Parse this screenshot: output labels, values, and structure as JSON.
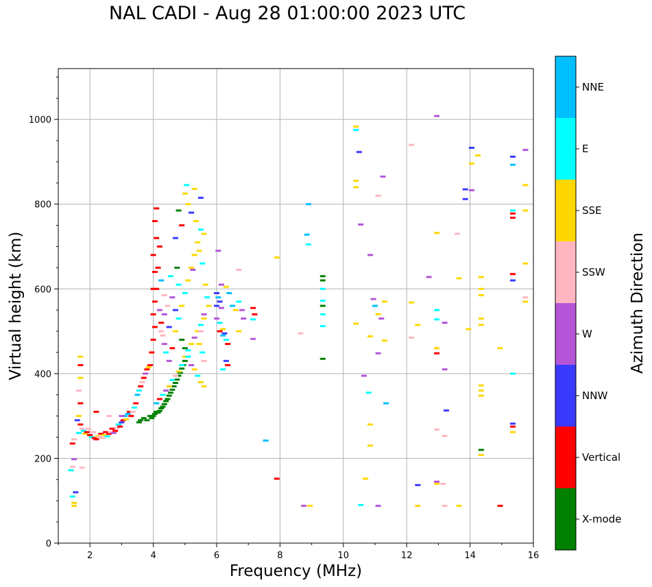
{
  "chart_data": {
    "type": "scatter",
    "title": "NAL CADI - Aug 28 01:00:00 2023 UTC",
    "xlabel": "Frequency (MHz)",
    "ylabel": "Virtual height (km)",
    "xlim": [
      1,
      16
    ],
    "ylim": [
      0,
      1120
    ],
    "xticks": [
      2,
      4,
      6,
      8,
      10,
      12,
      14,
      16
    ],
    "yticks": [
      0,
      200,
      400,
      600,
      800,
      1000
    ],
    "grid": true,
    "colorbar": {
      "title": "Azimuth Direction",
      "categories": [
        {
          "label": "X-mode",
          "color": "#008000"
        },
        {
          "label": "Vertical",
          "color": "#ff0000"
        },
        {
          "label": "NNW",
          "color": "#3a3aff"
        },
        {
          "label": "W",
          "color": "#b455d8"
        },
        {
          "label": "SSW",
          "color": "#ffb6c1"
        },
        {
          "label": "SSE",
          "color": "#ffd700"
        },
        {
          "label": "E",
          "color": "#00ffff"
        },
        {
          "label": "NNE",
          "color": "#00bfff"
        }
      ]
    },
    "points": [
      [
        1.5,
        88,
        5
      ],
      [
        1.5,
        95,
        5
      ],
      [
        1.45,
        110,
        6
      ],
      [
        1.55,
        120,
        2
      ],
      [
        1.45,
        180,
        4
      ],
      [
        1.4,
        172,
        6
      ],
      [
        1.5,
        198,
        3
      ],
      [
        1.45,
        235,
        1
      ],
      [
        1.5,
        245,
        4
      ],
      [
        1.75,
        178,
        4
      ],
      [
        1.6,
        290,
        2
      ],
      [
        1.65,
        300,
        5
      ],
      [
        1.7,
        330,
        1
      ],
      [
        1.65,
        360,
        4
      ],
      [
        1.7,
        390,
        5
      ],
      [
        1.7,
        420,
        1
      ],
      [
        1.7,
        440,
        5
      ],
      [
        1.65,
        260,
        6
      ],
      [
        1.7,
        280,
        1
      ],
      [
        1.75,
        270,
        4
      ],
      [
        1.8,
        265,
        6
      ],
      [
        1.85,
        258,
        5
      ],
      [
        1.9,
        262,
        1
      ],
      [
        1.95,
        270,
        4
      ],
      [
        2.0,
        255,
        1
      ],
      [
        2.05,
        250,
        6
      ],
      [
        2.1,
        262,
        4
      ],
      [
        2.15,
        248,
        1
      ],
      [
        2.2,
        245,
        1
      ],
      [
        2.25,
        252,
        5
      ],
      [
        2.3,
        250,
        4
      ],
      [
        2.35,
        258,
        1
      ],
      [
        2.4,
        248,
        4
      ],
      [
        2.45,
        255,
        5
      ],
      [
        2.5,
        262,
        1
      ],
      [
        2.55,
        252,
        6
      ],
      [
        2.6,
        258,
        1
      ],
      [
        2.65,
        262,
        4
      ],
      [
        2.7,
        270,
        1
      ],
      [
        2.75,
        260,
        3
      ],
      [
        2.8,
        265,
        1
      ],
      [
        2.85,
        272,
        4
      ],
      [
        2.9,
        280,
        6
      ],
      [
        2.95,
        275,
        1
      ],
      [
        3.0,
        285,
        2
      ],
      [
        3.05,
        290,
        1
      ],
      [
        3.1,
        300,
        7
      ],
      [
        3.15,
        292,
        5
      ],
      [
        3.2,
        305,
        7
      ],
      [
        3.25,
        310,
        1
      ],
      [
        2.2,
        310,
        1
      ],
      [
        2.6,
        300,
        4
      ],
      [
        3.0,
        300,
        3
      ],
      [
        3.3,
        300,
        1
      ],
      [
        3.35,
        310,
        4
      ],
      [
        3.4,
        320,
        6
      ],
      [
        3.45,
        330,
        1
      ],
      [
        3.5,
        350,
        7
      ],
      [
        3.55,
        360,
        6
      ],
      [
        3.6,
        370,
        1
      ],
      [
        3.65,
        380,
        4
      ],
      [
        3.7,
        390,
        1
      ],
      [
        3.75,
        400,
        3
      ],
      [
        3.8,
        410,
        1
      ],
      [
        3.85,
        415,
        5
      ],
      [
        3.55,
        285,
        0
      ],
      [
        3.6,
        290,
        0
      ],
      [
        3.7,
        295,
        0
      ],
      [
        3.8,
        290,
        0
      ],
      [
        3.9,
        300,
        0
      ],
      [
        3.95,
        295,
        0
      ],
      [
        4.0,
        300,
        0
      ],
      [
        4.05,
        305,
        0
      ],
      [
        4.1,
        310,
        0
      ],
      [
        4.15,
        308,
        0
      ],
      [
        4.2,
        312,
        0
      ],
      [
        4.25,
        318,
        0
      ],
      [
        4.3,
        322,
        0
      ],
      [
        4.35,
        328,
        0
      ],
      [
        4.4,
        335,
        0
      ],
      [
        4.45,
        340,
        0
      ],
      [
        4.5,
        348,
        0
      ],
      [
        4.55,
        355,
        0
      ],
      [
        4.6,
        362,
        0
      ],
      [
        4.65,
        370,
        0
      ],
      [
        4.7,
        378,
        0
      ],
      [
        4.75,
        386,
        0
      ],
      [
        4.8,
        395,
        0
      ],
      [
        4.85,
        402,
        0
      ],
      [
        4.9,
        412,
        0
      ],
      [
        4.95,
        420,
        0
      ],
      [
        5.0,
        430,
        0
      ],
      [
        4.1,
        330,
        7
      ],
      [
        4.2,
        340,
        1
      ],
      [
        4.3,
        350,
        6
      ],
      [
        4.4,
        360,
        3
      ],
      [
        4.5,
        370,
        5
      ],
      [
        4.6,
        385,
        6
      ],
      [
        4.7,
        395,
        4
      ],
      [
        4.8,
        405,
        5
      ],
      [
        4.9,
        420,
        6
      ],
      [
        5.0,
        440,
        5
      ],
      [
        5.1,
        455,
        6
      ],
      [
        5.2,
        470,
        5
      ],
      [
        5.3,
        485,
        3
      ],
      [
        5.4,
        500,
        5
      ],
      [
        5.5,
        515,
        6
      ],
      [
        5.6,
        530,
        5
      ],
      [
        3.9,
        420,
        1
      ],
      [
        3.95,
        450,
        1
      ],
      [
        4.0,
        480,
        1
      ],
      [
        4.05,
        510,
        1
      ],
      [
        4.0,
        540,
        1
      ],
      [
        4.05,
        570,
        1
      ],
      [
        4.0,
        600,
        1
      ],
      [
        4.05,
        640,
        1
      ],
      [
        4.0,
        680,
        1
      ],
      [
        4.1,
        720,
        1
      ],
      [
        4.05,
        760,
        1
      ],
      [
        4.1,
        790,
        1
      ],
      [
        4.2,
        700,
        1
      ],
      [
        4.15,
        650,
        1
      ],
      [
        4.1,
        600,
        1
      ],
      [
        4.2,
        550,
        3
      ],
      [
        4.25,
        520,
        1
      ],
      [
        4.3,
        490,
        4
      ],
      [
        4.35,
        470,
        3
      ],
      [
        4.4,
        450,
        6
      ],
      [
        4.5,
        430,
        3
      ],
      [
        4.6,
        460,
        1
      ],
      [
        4.7,
        500,
        5
      ],
      [
        4.8,
        530,
        6
      ],
      [
        4.9,
        560,
        5
      ],
      [
        5.0,
        590,
        6
      ],
      [
        5.1,
        620,
        5
      ],
      [
        5.2,
        650,
        5
      ],
      [
        5.3,
        680,
        5
      ],
      [
        5.4,
        710,
        5
      ],
      [
        5.5,
        740,
        6
      ],
      [
        5.35,
        760,
        5
      ],
      [
        5.2,
        780,
        2
      ],
      [
        5.1,
        800,
        5
      ],
      [
        5.0,
        825,
        5
      ],
      [
        5.05,
        845,
        6
      ],
      [
        5.3,
        836,
        5
      ],
      [
        5.5,
        815,
        2
      ],
      [
        4.8,
        785,
        0
      ],
      [
        4.9,
        750,
        1
      ],
      [
        4.7,
        720,
        2
      ],
      [
        4.75,
        650,
        0
      ],
      [
        4.8,
        610,
        6
      ],
      [
        4.6,
        580,
        3
      ],
      [
        4.7,
        550,
        2
      ],
      [
        4.5,
        510,
        2
      ],
      [
        4.9,
        480,
        0
      ],
      [
        5.0,
        460,
        0
      ],
      [
        5.1,
        440,
        6
      ],
      [
        5.2,
        420,
        3
      ],
      [
        5.3,
        410,
        5
      ],
      [
        5.4,
        395,
        6
      ],
      [
        5.5,
        380,
        5
      ],
      [
        5.6,
        370,
        5
      ],
      [
        5.25,
        645,
        3
      ],
      [
        5.45,
        690,
        5
      ],
      [
        5.6,
        730,
        5
      ],
      [
        5.55,
        660,
        6
      ],
      [
        5.65,
        610,
        5
      ],
      [
        5.7,
        580,
        6
      ],
      [
        5.75,
        560,
        5
      ],
      [
        5.6,
        540,
        3
      ],
      [
        5.5,
        500,
        4
      ],
      [
        5.45,
        470,
        5
      ],
      [
        5.55,
        450,
        6
      ],
      [
        5.6,
        430,
        4
      ],
      [
        4.35,
        585,
        4
      ],
      [
        4.25,
        620,
        7
      ],
      [
        4.55,
        630,
        6
      ],
      [
        4.45,
        560,
        4
      ],
      [
        4.35,
        540,
        3
      ],
      [
        4.25,
        500,
        4
      ],
      [
        6.0,
        560,
        2
      ],
      [
        6.05,
        580,
        7
      ],
      [
        6.1,
        570,
        2
      ],
      [
        6.15,
        555,
        3
      ],
      [
        6.0,
        530,
        3
      ],
      [
        6.1,
        520,
        6
      ],
      [
        6.2,
        505,
        5
      ],
      [
        6.25,
        495,
        2
      ],
      [
        6.3,
        480,
        6
      ],
      [
        6.35,
        470,
        1
      ],
      [
        6.1,
        500,
        1
      ],
      [
        6.2,
        490,
        7
      ],
      [
        6.3,
        430,
        2
      ],
      [
        6.35,
        420,
        1
      ],
      [
        6.2,
        410,
        6
      ],
      [
        6.0,
        590,
        2
      ],
      [
        6.05,
        690,
        3
      ],
      [
        6.15,
        610,
        3
      ],
      [
        6.3,
        605,
        5
      ],
      [
        6.4,
        590,
        7
      ],
      [
        6.5,
        560,
        7
      ],
      [
        6.6,
        550,
        5
      ],
      [
        6.7,
        570,
        6
      ],
      [
        6.8,
        550,
        3
      ],
      [
        6.85,
        530,
        3
      ],
      [
        6.7,
        500,
        5
      ],
      [
        6.7,
        645,
        4
      ],
      [
        7.15,
        555,
        1
      ],
      [
        7.2,
        540,
        1
      ],
      [
        7.15,
        528,
        6
      ],
      [
        7.15,
        482,
        3
      ],
      [
        7.55,
        242,
        7
      ],
      [
        7.9,
        152,
        1
      ],
      [
        7.9,
        674,
        5
      ],
      [
        8.65,
        495,
        4
      ],
      [
        8.9,
        800,
        7
      ],
      [
        8.85,
        728,
        7
      ],
      [
        8.9,
        705,
        6
      ],
      [
        8.75,
        88,
        3
      ],
      [
        8.95,
        88,
        5
      ],
      [
        9.35,
        630,
        0
      ],
      [
        9.35,
        620,
        0
      ],
      [
        9.35,
        600,
        6
      ],
      [
        9.35,
        572,
        6
      ],
      [
        9.35,
        560,
        0
      ],
      [
        9.35,
        540,
        6
      ],
      [
        9.35,
        512,
        6
      ],
      [
        9.35,
        435,
        0
      ],
      [
        10.4,
        983,
        5
      ],
      [
        10.4,
        975,
        6
      ],
      [
        10.4,
        855,
        5
      ],
      [
        10.4,
        840,
        5
      ],
      [
        10.5,
        923,
        2
      ],
      [
        10.55,
        752,
        3
      ],
      [
        10.4,
        518,
        5
      ],
      [
        10.65,
        395,
        3
      ],
      [
        10.8,
        355,
        6
      ],
      [
        10.85,
        280,
        5
      ],
      [
        10.85,
        230,
        5
      ],
      [
        10.7,
        152,
        5
      ],
      [
        10.55,
        90,
        6
      ],
      [
        10.85,
        680,
        3
      ],
      [
        10.95,
        576,
        3
      ],
      [
        11.0,
        560,
        7
      ],
      [
        11.1,
        540,
        5
      ],
      [
        11.2,
        530,
        3
      ],
      [
        11.3,
        570,
        5
      ],
      [
        11.1,
        820,
        4
      ],
      [
        11.25,
        865,
        3
      ],
      [
        10.85,
        488,
        5
      ],
      [
        11.1,
        448,
        3
      ],
      [
        11.3,
        478,
        5
      ],
      [
        11.35,
        330,
        7
      ],
      [
        11.1,
        88,
        3
      ],
      [
        12.15,
        940,
        4
      ],
      [
        12.15,
        568,
        5
      ],
      [
        12.35,
        515,
        5
      ],
      [
        12.15,
        485,
        4
      ],
      [
        12.7,
        628,
        3
      ],
      [
        12.95,
        732,
        5
      ],
      [
        12.95,
        550,
        6
      ],
      [
        12.95,
        528,
        6
      ],
      [
        12.95,
        460,
        5
      ],
      [
        12.95,
        448,
        1
      ],
      [
        13.2,
        520,
        3
      ],
      [
        13.2,
        410,
        3
      ],
      [
        13.25,
        313,
        2
      ],
      [
        12.95,
        268,
        4
      ],
      [
        13.2,
        253,
        4
      ],
      [
        12.35,
        137,
        2
      ],
      [
        12.95,
        145,
        3
      ],
      [
        12.95,
        140,
        5
      ],
      [
        13.15,
        140,
        4
      ],
      [
        12.35,
        88,
        5
      ],
      [
        13.2,
        88,
        4
      ],
      [
        12.95,
        1008,
        3
      ],
      [
        13.6,
        730,
        4
      ],
      [
        13.65,
        625,
        5
      ],
      [
        13.95,
        505,
        5
      ],
      [
        13.85,
        835,
        2
      ],
      [
        13.85,
        812,
        2
      ],
      [
        14.05,
        933,
        2
      ],
      [
        14.05,
        833,
        3
      ],
      [
        14.05,
        896,
        5
      ],
      [
        14.25,
        915,
        5
      ],
      [
        14.35,
        628,
        5
      ],
      [
        14.35,
        600,
        5
      ],
      [
        14.35,
        585,
        5
      ],
      [
        14.35,
        530,
        5
      ],
      [
        14.35,
        515,
        5
      ],
      [
        14.35,
        372,
        5
      ],
      [
        14.35,
        360,
        5
      ],
      [
        14.35,
        348,
        5
      ],
      [
        14.35,
        220,
        0
      ],
      [
        14.35,
        208,
        5
      ],
      [
        13.65,
        88,
        5
      ],
      [
        14.95,
        88,
        1
      ],
      [
        14.95,
        460,
        5
      ],
      [
        15.35,
        912,
        2
      ],
      [
        15.35,
        893,
        7
      ],
      [
        15.35,
        785,
        6
      ],
      [
        15.35,
        778,
        1
      ],
      [
        15.35,
        768,
        1
      ],
      [
        15.35,
        635,
        1
      ],
      [
        15.35,
        620,
        2
      ],
      [
        15.35,
        400,
        6
      ],
      [
        15.35,
        282,
        2
      ],
      [
        15.35,
        275,
        1
      ],
      [
        15.35,
        262,
        5
      ],
      [
        15.75,
        928,
        3
      ],
      [
        15.75,
        845,
        5
      ],
      [
        15.75,
        785,
        5
      ],
      [
        15.75,
        660,
        5
      ],
      [
        15.75,
        580,
        4
      ],
      [
        15.75,
        570,
        5
      ]
    ]
  }
}
